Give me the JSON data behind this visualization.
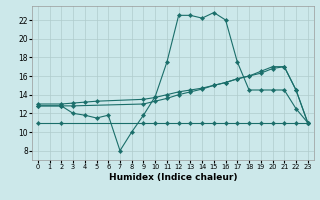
{
  "xlabel": "Humidex (Indice chaleur)",
  "bg_color": "#cce8ea",
  "grid_color": "#b0cccc",
  "line_color": "#1a6e6a",
  "xlim": [
    -0.5,
    23.5
  ],
  "ylim": [
    7.0,
    23.5
  ],
  "yticks": [
    8,
    10,
    12,
    14,
    16,
    18,
    20,
    22
  ],
  "xticks": [
    0,
    1,
    2,
    3,
    4,
    5,
    6,
    7,
    8,
    9,
    10,
    11,
    12,
    13,
    14,
    15,
    16,
    17,
    18,
    19,
    20,
    21,
    22,
    23
  ],
  "series": [
    {
      "x": [
        0,
        2,
        3,
        4,
        5,
        9,
        10,
        11,
        12,
        13,
        14,
        15,
        16,
        17,
        18,
        19,
        20,
        21,
        22,
        23
      ],
      "y": [
        13.0,
        13.0,
        13.1,
        13.2,
        13.3,
        13.5,
        13.7,
        14.0,
        14.3,
        14.5,
        14.7,
        15.0,
        15.3,
        15.7,
        16.0,
        16.3,
        16.8,
        17.0,
        14.5,
        11.0
      ]
    },
    {
      "x": [
        0,
        2,
        3,
        4,
        5,
        6,
        7,
        8,
        9,
        10,
        11,
        12,
        13,
        14,
        15,
        16,
        17,
        18,
        19,
        20,
        21,
        22,
        23
      ],
      "y": [
        12.8,
        12.8,
        12.0,
        11.8,
        11.5,
        11.8,
        8.0,
        10.0,
        11.8,
        13.8,
        17.5,
        22.5,
        22.5,
        22.2,
        22.8,
        22.0,
        17.5,
        14.5,
        14.5,
        14.5,
        14.5,
        12.5,
        11.0
      ]
    },
    {
      "x": [
        0,
        2,
        3,
        9,
        10,
        11,
        12,
        13,
        14,
        15,
        16,
        17,
        18,
        19,
        20,
        21,
        22,
        23
      ],
      "y": [
        12.8,
        12.8,
        12.8,
        13.0,
        13.3,
        13.6,
        14.0,
        14.3,
        14.6,
        15.0,
        15.3,
        15.7,
        16.0,
        16.5,
        17.0,
        17.0,
        14.5,
        11.0
      ]
    },
    {
      "x": [
        0,
        2,
        9,
        10,
        11,
        12,
        13,
        14,
        15,
        16,
        17,
        18,
        19,
        20,
        21,
        22,
        23
      ],
      "y": [
        11.0,
        11.0,
        11.0,
        11.0,
        11.0,
        11.0,
        11.0,
        11.0,
        11.0,
        11.0,
        11.0,
        11.0,
        11.0,
        11.0,
        11.0,
        11.0,
        11.0
      ]
    }
  ]
}
